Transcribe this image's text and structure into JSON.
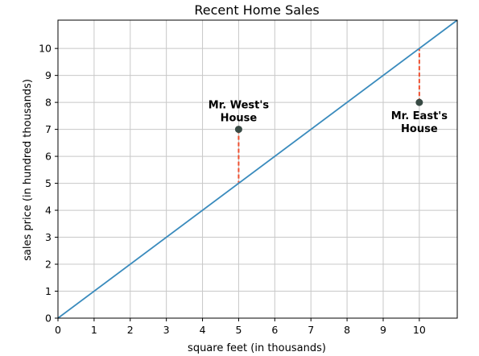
{
  "chart_data": {
    "type": "line",
    "title": "Recent Home Sales",
    "xlabel": "square feet (in thousands)",
    "ylabel": "sales price (in hundred thousands)",
    "xlim": [
      0,
      11.05
    ],
    "ylim": [
      0,
      11.05
    ],
    "xticks": [
      0,
      1,
      2,
      3,
      4,
      5,
      6,
      7,
      8,
      9,
      10
    ],
    "yticks": [
      0,
      1,
      2,
      3,
      4,
      5,
      6,
      7,
      8,
      9,
      10
    ],
    "grid": true,
    "series": [
      {
        "x": [
          0,
          11.05
        ],
        "y": [
          0,
          11.05
        ],
        "color": "#3a8bbd"
      }
    ],
    "points": [
      {
        "label_lines": [
          "Mr. West's",
          "House"
        ],
        "x": 5,
        "y": 7,
        "label_position": "above",
        "residual_to": 5
      },
      {
        "label_lines": [
          "Mr. East's",
          "House"
        ],
        "x": 10,
        "y": 8,
        "label_position": "below",
        "residual_to": 10
      }
    ],
    "colors": {
      "line": "#3a8bbd",
      "residual": "#ef4f2f",
      "point": "#384a44",
      "grid": "#c8c8c8"
    }
  }
}
